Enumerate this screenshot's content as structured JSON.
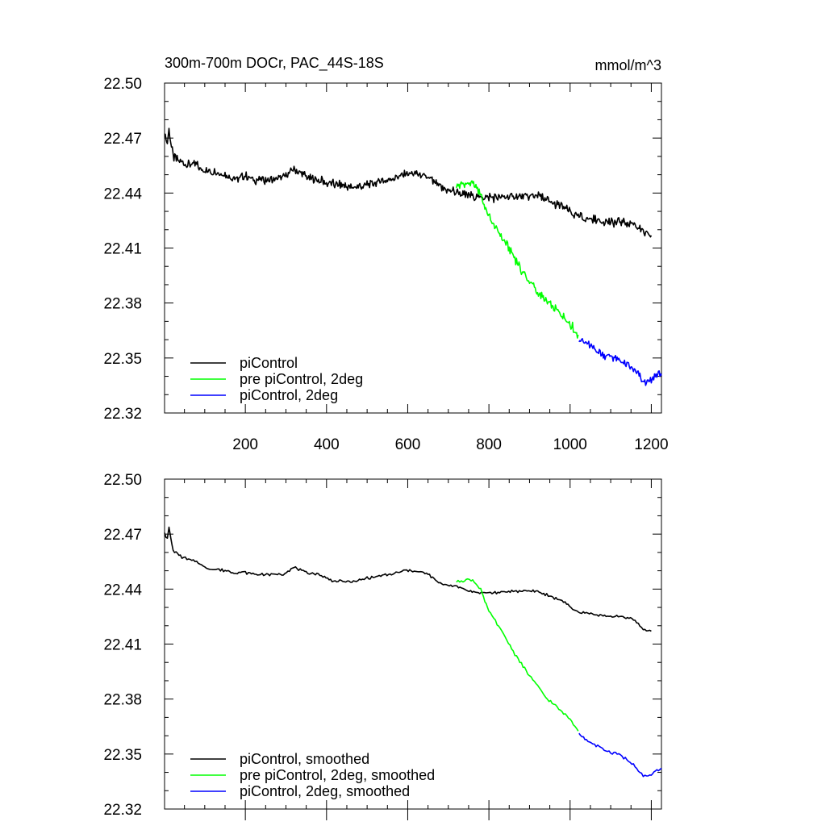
{
  "colors": {
    "black": "#000000",
    "green": "#00ff00",
    "blue": "#0000ff"
  },
  "chart_data": [
    {
      "type": "line",
      "title": "300m-700m DOCr, PAC_44S-18S",
      "units": "mmol/m^3",
      "xlim": [
        1,
        1225
      ],
      "ylim": [
        22.32,
        22.5
      ],
      "x_ticks": [
        "200",
        "400",
        "600",
        "800",
        "1000",
        "1200"
      ],
      "y_ticks": [
        "22.50",
        "22.47",
        "22.44",
        "22.41",
        "22.38",
        "22.35",
        "22.32"
      ],
      "legend_position": "bottom-left",
      "series": [
        {
          "name": "piControl",
          "color": "#000000",
          "points": [
            [
              1,
              22.473
            ],
            [
              8,
              22.467
            ],
            [
              12,
              22.475
            ],
            [
              16,
              22.468
            ],
            [
              22,
              22.46
            ],
            [
              40,
              22.457
            ],
            [
              60,
              22.456
            ],
            [
              80,
              22.455
            ],
            [
              100,
              22.452
            ],
            [
              120,
              22.452
            ],
            [
              150,
              22.45
            ],
            [
              180,
              22.448
            ],
            [
              200,
              22.449
            ],
            [
              230,
              22.447
            ],
            [
              260,
              22.447
            ],
            [
              290,
              22.448
            ],
            [
              320,
              22.453
            ],
            [
              350,
              22.449
            ],
            [
              380,
              22.447
            ],
            [
              410,
              22.445
            ],
            [
              440,
              22.444
            ],
            [
              470,
              22.443
            ],
            [
              500,
              22.445
            ],
            [
              530,
              22.446
            ],
            [
              560,
              22.448
            ],
            [
              590,
              22.45
            ],
            [
              620,
              22.451
            ],
            [
              650,
              22.448
            ],
            [
              680,
              22.443
            ],
            [
              710,
              22.441
            ],
            [
              740,
              22.439
            ],
            [
              770,
              22.438
            ],
            [
              800,
              22.438
            ],
            [
              830,
              22.437
            ],
            [
              860,
              22.438
            ],
            [
              890,
              22.438
            ],
            [
              920,
              22.439
            ],
            [
              950,
              22.435
            ],
            [
              980,
              22.433
            ],
            [
              1010,
              22.428
            ],
            [
              1040,
              22.426
            ],
            [
              1070,
              22.425
            ],
            [
              1100,
              22.424
            ],
            [
              1130,
              22.424
            ],
            [
              1160,
              22.423
            ],
            [
              1180,
              22.418
            ],
            [
              1200,
              22.416
            ]
          ]
        },
        {
          "name": "pre piControl, 2deg",
          "color": "#00ff00",
          "points": [
            [
              720,
              22.444
            ],
            [
              740,
              22.445
            ],
            [
              760,
              22.445
            ],
            [
              780,
              22.44
            ],
            [
              790,
              22.432
            ],
            [
              800,
              22.427
            ],
            [
              820,
              22.42
            ],
            [
              840,
              22.413
            ],
            [
              860,
              22.406
            ],
            [
              880,
              22.398
            ],
            [
              900,
              22.392
            ],
            [
              920,
              22.386
            ],
            [
              940,
              22.381
            ],
            [
              960,
              22.377
            ],
            [
              980,
              22.373
            ],
            [
              1000,
              22.369
            ],
            [
              1020,
              22.362
            ]
          ]
        },
        {
          "name": "piControl, 2deg",
          "color": "#0000ff",
          "points": [
            [
              1022,
              22.361
            ],
            [
              1040,
              22.358
            ],
            [
              1060,
              22.355
            ],
            [
              1080,
              22.352
            ],
            [
              1100,
              22.351
            ],
            [
              1120,
              22.349
            ],
            [
              1140,
              22.346
            ],
            [
              1160,
              22.343
            ],
            [
              1180,
              22.337
            ],
            [
              1200,
              22.337
            ],
            [
              1210,
              22.341
            ],
            [
              1225,
              22.342
            ]
          ]
        }
      ]
    },
    {
      "type": "line",
      "xlim": [
        1,
        1225
      ],
      "ylim": [
        22.32,
        22.5
      ],
      "y_ticks": [
        "22.50",
        "22.47",
        "22.44",
        "22.41",
        "22.38",
        "22.35",
        "22.32"
      ],
      "legend_position": "bottom-left",
      "series": [
        {
          "name": "piControl, smoothed",
          "color": "#000000",
          "points": [
            [
              1,
              22.471
            ],
            [
              8,
              22.467
            ],
            [
              12,
              22.474
            ],
            [
              16,
              22.468
            ],
            [
              22,
              22.461
            ],
            [
              40,
              22.458
            ],
            [
              60,
              22.456
            ],
            [
              80,
              22.455
            ],
            [
              100,
              22.452
            ],
            [
              120,
              22.451
            ],
            [
              150,
              22.45
            ],
            [
              180,
              22.449
            ],
            [
              200,
              22.449
            ],
            [
              230,
              22.448
            ],
            [
              260,
              22.448
            ],
            [
              290,
              22.448
            ],
            [
              320,
              22.452
            ],
            [
              350,
              22.449
            ],
            [
              380,
              22.448
            ],
            [
              410,
              22.445
            ],
            [
              440,
              22.444
            ],
            [
              470,
              22.444
            ],
            [
              500,
              22.446
            ],
            [
              530,
              22.447
            ],
            [
              560,
              22.448
            ],
            [
              590,
              22.45
            ],
            [
              620,
              22.45
            ],
            [
              650,
              22.448
            ],
            [
              680,
              22.443
            ],
            [
              710,
              22.442
            ],
            [
              740,
              22.44
            ],
            [
              770,
              22.438
            ],
            [
              800,
              22.438
            ],
            [
              830,
              22.438
            ],
            [
              860,
              22.439
            ],
            [
              890,
              22.439
            ],
            [
              920,
              22.439
            ],
            [
              950,
              22.436
            ],
            [
              980,
              22.434
            ],
            [
              1010,
              22.428
            ],
            [
              1040,
              22.427
            ],
            [
              1070,
              22.426
            ],
            [
              1100,
              22.425
            ],
            [
              1130,
              22.425
            ],
            [
              1160,
              22.423
            ],
            [
              1180,
              22.418
            ],
            [
              1200,
              22.417
            ]
          ]
        },
        {
          "name": "pre piControl, 2deg, smoothed",
          "color": "#00ff00",
          "points": [
            [
              720,
              22.444
            ],
            [
              740,
              22.445
            ],
            [
              760,
              22.445
            ],
            [
              780,
              22.44
            ],
            [
              790,
              22.433
            ],
            [
              800,
              22.428
            ],
            [
              820,
              22.421
            ],
            [
              840,
              22.414
            ],
            [
              860,
              22.406
            ],
            [
              880,
              22.399
            ],
            [
              900,
              22.393
            ],
            [
              920,
              22.387
            ],
            [
              940,
              22.381
            ],
            [
              960,
              22.377
            ],
            [
              980,
              22.373
            ],
            [
              1000,
              22.369
            ],
            [
              1020,
              22.363
            ]
          ]
        },
        {
          "name": "piControl, 2deg, smoothed",
          "color": "#0000ff",
          "points": [
            [
              1022,
              22.361
            ],
            [
              1040,
              22.358
            ],
            [
              1060,
              22.355
            ],
            [
              1080,
              22.353
            ],
            [
              1100,
              22.351
            ],
            [
              1120,
              22.35
            ],
            [
              1140,
              22.347
            ],
            [
              1160,
              22.343
            ],
            [
              1180,
              22.338
            ],
            [
              1200,
              22.338
            ],
            [
              1210,
              22.341
            ],
            [
              1225,
              22.342
            ]
          ]
        }
      ]
    }
  ]
}
